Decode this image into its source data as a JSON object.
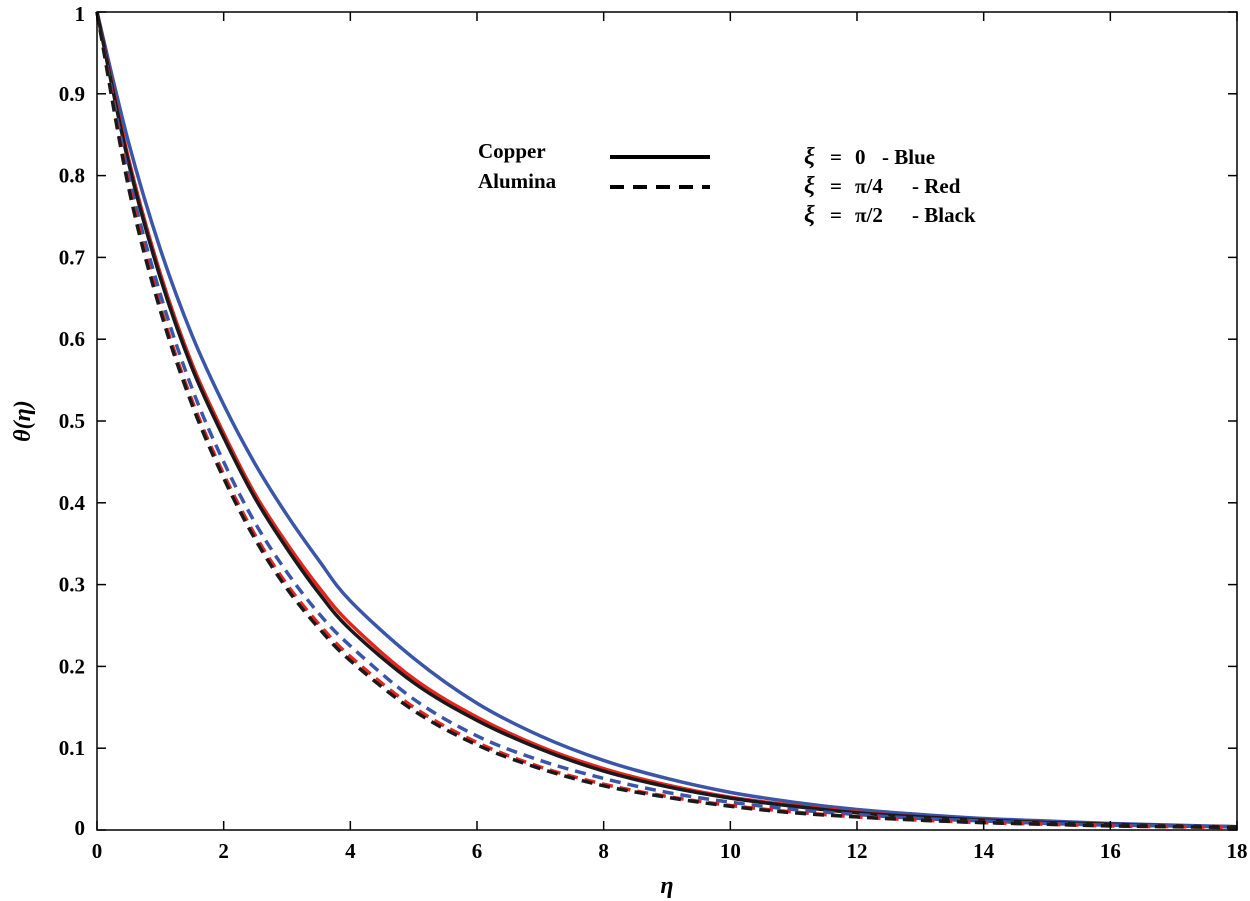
{
  "chart_data": {
    "type": "line",
    "xlabel": "η",
    "ylabel": "θ(η)",
    "xlim": [
      0,
      18
    ],
    "ylim": [
      0,
      1
    ],
    "xticks": [
      "0",
      "2",
      "4",
      "6",
      "8",
      "10",
      "12",
      "14",
      "16",
      "18"
    ],
    "yticks": [
      "0",
      "0.1",
      "0.2",
      "0.3",
      "0.4",
      "0.5",
      "0.6",
      "0.7",
      "0.8",
      "0.9",
      "1"
    ],
    "grid": false,
    "legend": {
      "styles": [
        {
          "label": "Copper",
          "dash": "solid"
        },
        {
          "label": "Alumina",
          "dash": "dashed"
        }
      ],
      "colors": [
        {
          "symbol": "ξ",
          "eq": "=",
          "value": "0",
          "text": "- Blue",
          "color": "#3a56a8"
        },
        {
          "symbol": "ξ",
          "eq": "=",
          "value": "π/4",
          "text": "- Red",
          "color": "#e5241e"
        },
        {
          "symbol": "ξ",
          "eq": "=",
          "value": "π/2",
          "text": "- Black",
          "color": "#1a1a1a"
        }
      ]
    },
    "x": [
      0,
      0.5,
      1,
      1.5,
      2,
      2.5,
      3,
      3.5,
      4,
      5,
      6,
      7,
      8,
      9,
      10,
      11,
      12,
      13,
      14,
      15,
      16,
      17,
      18
    ],
    "series": [
      {
        "material": "Copper",
        "xi": "0",
        "color": "#3a56a8",
        "dash": "solid",
        "values": [
          1,
          0.84,
          0.71,
          0.605,
          0.52,
          0.447,
          0.385,
          0.33,
          0.28,
          0.21,
          0.155,
          0.115,
          0.085,
          0.063,
          0.046,
          0.034,
          0.025,
          0.019,
          0.014,
          0.011,
          0.008,
          0.006,
          0.004
        ]
      },
      {
        "material": "Copper",
        "xi": "π/4",
        "color": "#e5241e",
        "dash": "solid",
        "values": [
          1,
          0.82,
          0.68,
          0.57,
          0.485,
          0.41,
          0.35,
          0.297,
          0.252,
          0.185,
          0.138,
          0.102,
          0.075,
          0.055,
          0.04,
          0.03,
          0.022,
          0.016,
          0.012,
          0.009,
          0.007,
          0.005,
          0.004
        ]
      },
      {
        "material": "Copper",
        "xi": "π/2",
        "color": "#1a1a1a",
        "dash": "solid",
        "values": [
          1,
          0.815,
          0.675,
          0.565,
          0.48,
          0.405,
          0.344,
          0.29,
          0.245,
          0.18,
          0.134,
          0.099,
          0.072,
          0.053,
          0.039,
          0.029,
          0.021,
          0.016,
          0.012,
          0.009,
          0.007,
          0.005,
          0.004
        ]
      },
      {
        "material": "Alumina",
        "xi": "0",
        "color": "#3a56a8",
        "dash": "dashed",
        "values": [
          1,
          0.8,
          0.655,
          0.54,
          0.45,
          0.375,
          0.315,
          0.265,
          0.225,
          0.16,
          0.115,
          0.085,
          0.063,
          0.046,
          0.034,
          0.025,
          0.019,
          0.014,
          0.011,
          0.008,
          0.006,
          0.005,
          0.004
        ]
      },
      {
        "material": "Alumina",
        "xi": "π/4",
        "color": "#e5241e",
        "dash": "dashed",
        "values": [
          1,
          0.79,
          0.64,
          0.525,
          0.435,
          0.36,
          0.3,
          0.252,
          0.212,
          0.15,
          0.107,
          0.077,
          0.056,
          0.041,
          0.03,
          0.022,
          0.016,
          0.012,
          0.009,
          0.007,
          0.005,
          0.004,
          0.003
        ]
      },
      {
        "material": "Alumina",
        "xi": "π/2",
        "color": "#1a1a1a",
        "dash": "dashed",
        "values": [
          1,
          0.785,
          0.635,
          0.52,
          0.43,
          0.355,
          0.295,
          0.247,
          0.207,
          0.146,
          0.104,
          0.075,
          0.054,
          0.04,
          0.029,
          0.021,
          0.016,
          0.012,
          0.009,
          0.007,
          0.005,
          0.004,
          0.003
        ]
      }
    ]
  }
}
